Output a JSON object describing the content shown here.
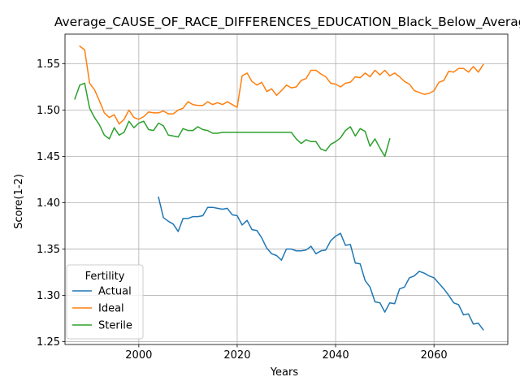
{
  "chart_data": {
    "type": "line",
    "title": "Average_CAUSE_OF_RACE_DIFFERENCES_EDUCATION_Black_Below_Average",
    "xlabel": "Years",
    "ylabel": "Score(1-2)",
    "xlim": [
      1985,
      2075
    ],
    "ylim": [
      1.247,
      1.582
    ],
    "xticks": [
      2000,
      2020,
      2040,
      2060
    ],
    "yticks": [
      1.25,
      1.3,
      1.35,
      1.4,
      1.45,
      1.5,
      1.55
    ],
    "grid": true,
    "legend": {
      "title": "Fertility",
      "placement": "lower-left"
    },
    "series": [
      {
        "name": "Actual",
        "color": "#1f77b4",
        "x": [
          2004,
          2005,
          2006,
          2007,
          2008,
          2009,
          2010,
          2011,
          2012,
          2013,
          2014,
          2015,
          2016,
          2017,
          2018,
          2019,
          2020,
          2021,
          2022,
          2023,
          2024,
          2025,
          2026,
          2027,
          2028,
          2029,
          2030,
          2031,
          2032,
          2033,
          2034,
          2035,
          2036,
          2037,
          2038,
          2039,
          2040,
          2041,
          2042,
          2043,
          2044,
          2045,
          2046,
          2047,
          2048,
          2049,
          2050,
          2051,
          2052,
          2053,
          2054,
          2055,
          2056,
          2057,
          2058,
          2059,
          2060,
          2061,
          2062,
          2063,
          2064,
          2065,
          2066,
          2067,
          2068,
          2069,
          2070
        ],
        "y": [
          1.406,
          1.384,
          1.38,
          1.377,
          1.369,
          1.383,
          1.383,
          1.385,
          1.385,
          1.386,
          1.395,
          1.395,
          1.394,
          1.393,
          1.394,
          1.387,
          1.386,
          1.376,
          1.381,
          1.371,
          1.37,
          1.362,
          1.351,
          1.345,
          1.343,
          1.338,
          1.35,
          1.35,
          1.348,
          1.348,
          1.349,
          1.353,
          1.345,
          1.348,
          1.349,
          1.359,
          1.364,
          1.367,
          1.354,
          1.355,
          1.335,
          1.334,
          1.316,
          1.309,
          1.293,
          1.292,
          1.282,
          1.292,
          1.291,
          1.307,
          1.309,
          1.319,
          1.321,
          1.326,
          1.324,
          1.321,
          1.319,
          1.313,
          1.307,
          1.3,
          1.292,
          1.29,
          1.279,
          1.28,
          1.269,
          1.27,
          1.263
        ]
      },
      {
        "name": "Ideal",
        "color": "#ff7f0e",
        "x": [
          1988,
          1989,
          1990,
          1991,
          1992,
          1993,
          1994,
          1995,
          1996,
          1997,
          1998,
          1999,
          2000,
          2001,
          2002,
          2003,
          2004,
          2005,
          2006,
          2007,
          2008,
          2009,
          2010,
          2011,
          2012,
          2013,
          2014,
          2015,
          2016,
          2017,
          2018,
          2019,
          2020,
          2021,
          2022,
          2023,
          2024,
          2025,
          2026,
          2027,
          2028,
          2029,
          2030,
          2031,
          2032,
          2033,
          2034,
          2035,
          2036,
          2037,
          2038,
          2039,
          2040,
          2041,
          2042,
          2043,
          2044,
          2045,
          2046,
          2047,
          2048,
          2049,
          2050,
          2051,
          2052,
          2053,
          2054,
          2055,
          2056,
          2057,
          2058,
          2059,
          2060,
          2061,
          2062,
          2063,
          2064,
          2065,
          2066,
          2067,
          2068,
          2069,
          2070
        ],
        "y": [
          1.569,
          1.565,
          1.529,
          1.522,
          1.51,
          1.497,
          1.492,
          1.495,
          1.485,
          1.49,
          1.5,
          1.492,
          1.49,
          1.493,
          1.498,
          1.497,
          1.497,
          1.499,
          1.496,
          1.496,
          1.5,
          1.502,
          1.509,
          1.506,
          1.505,
          1.505,
          1.509,
          1.506,
          1.508,
          1.506,
          1.509,
          1.506,
          1.503,
          1.537,
          1.54,
          1.531,
          1.527,
          1.53,
          1.52,
          1.523,
          1.516,
          1.521,
          1.527,
          1.524,
          1.525,
          1.532,
          1.534,
          1.543,
          1.543,
          1.539,
          1.536,
          1.529,
          1.528,
          1.525,
          1.529,
          1.53,
          1.536,
          1.535,
          1.54,
          1.536,
          1.543,
          1.538,
          1.543,
          1.537,
          1.54,
          1.536,
          1.531,
          1.528,
          1.521,
          1.519,
          1.517,
          1.518,
          1.521,
          1.53,
          1.532,
          1.542,
          1.541,
          1.545,
          1.545,
          1.541,
          1.547,
          1.541,
          1.549
        ]
      },
      {
        "name": "Sterile",
        "color": "#2ca02c",
        "x": [
          1987,
          1988,
          1989,
          1990,
          1991,
          1992,
          1993,
          1994,
          1995,
          1996,
          1997,
          1998,
          1999,
          2000,
          2001,
          2002,
          2003,
          2004,
          2005,
          2006,
          2007,
          2008,
          2009,
          2010,
          2011,
          2012,
          2013,
          2014,
          2015,
          2016,
          2017,
          2018,
          2019,
          2020,
          2021,
          2022,
          2023,
          2024,
          2025,
          2026,
          2027,
          2028,
          2029,
          2030,
          2031,
          2032,
          2033,
          2034,
          2035,
          2036,
          2037,
          2038,
          2039,
          2040,
          2041,
          2042,
          2043,
          2044,
          2045,
          2046,
          2047,
          2048,
          2049,
          2050,
          2051
        ],
        "y": [
          1.512,
          1.527,
          1.529,
          1.502,
          1.492,
          1.484,
          1.473,
          1.469,
          1.481,
          1.473,
          1.476,
          1.488,
          1.481,
          1.486,
          1.488,
          1.479,
          1.478,
          1.486,
          1.483,
          1.473,
          1.472,
          1.471,
          1.48,
          1.478,
          1.478,
          1.482,
          1.479,
          1.478,
          1.475,
          1.475,
          1.476,
          1.476,
          1.476,
          1.476,
          1.476,
          1.476,
          1.476,
          1.476,
          1.476,
          1.476,
          1.476,
          1.476,
          1.476,
          1.476,
          1.476,
          1.469,
          1.464,
          1.468,
          1.466,
          1.466,
          1.458,
          1.456,
          1.463,
          1.466,
          1.47,
          1.478,
          1.482,
          1.472,
          1.48,
          1.477,
          1.461,
          1.469,
          1.459,
          1.45,
          1.469
        ]
      }
    ]
  }
}
